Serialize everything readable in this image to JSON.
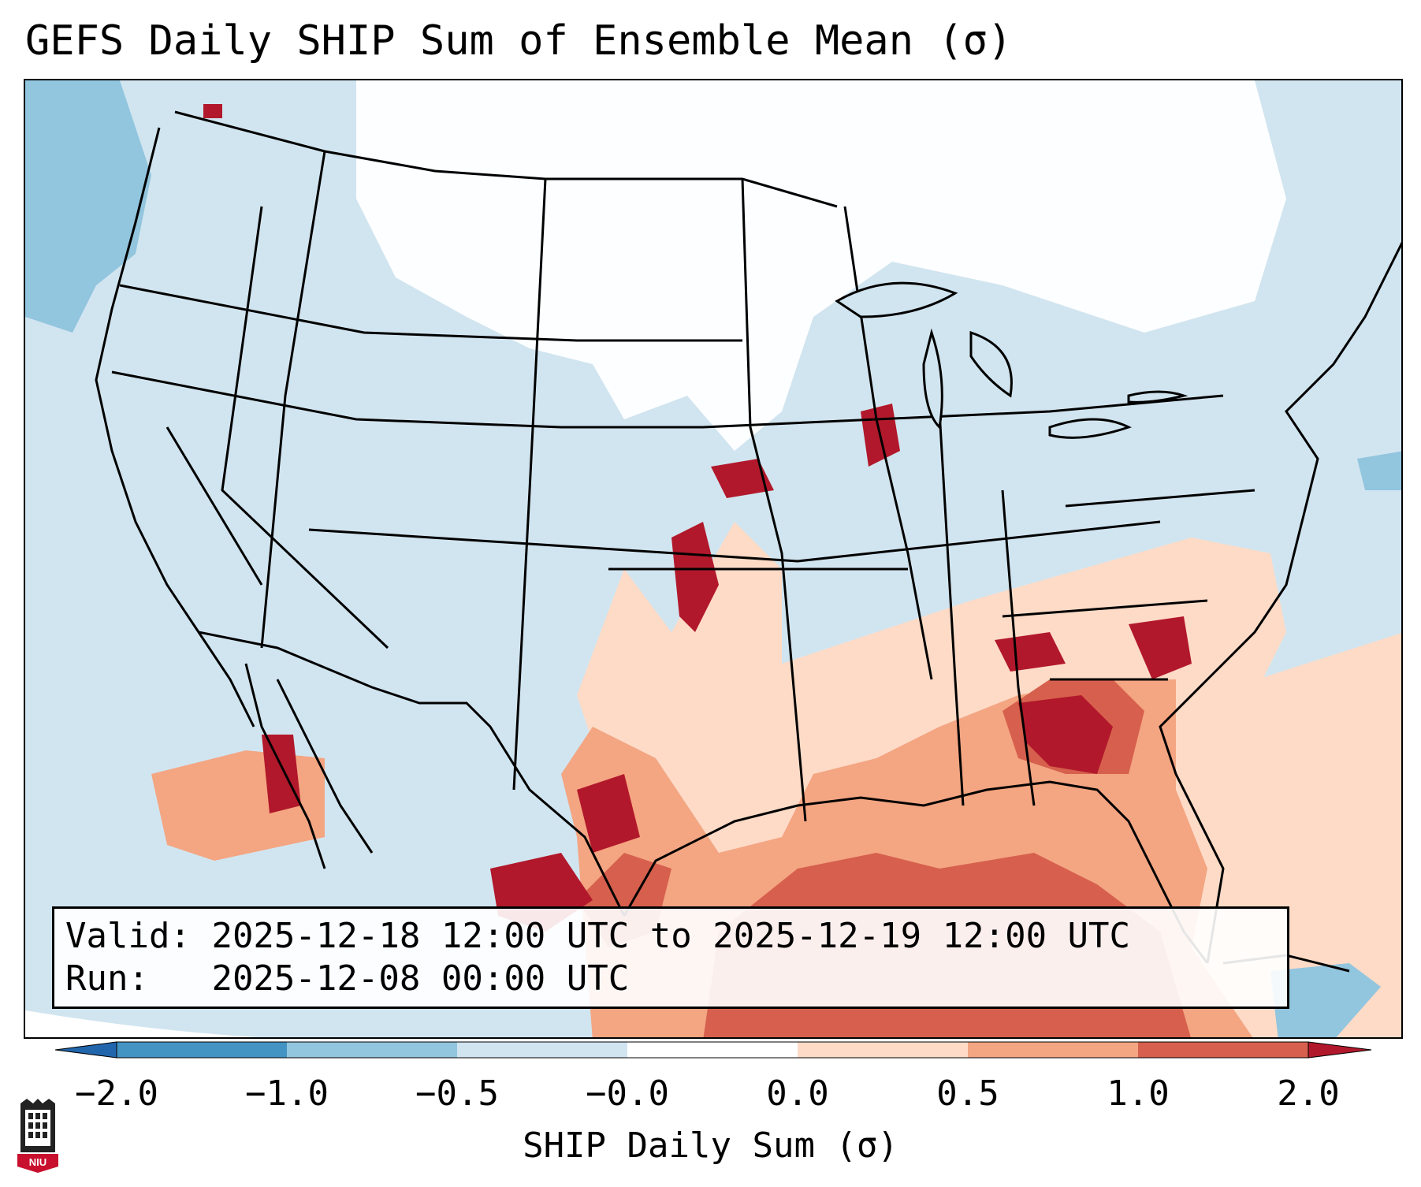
{
  "title": "GEFS Daily SHIP Sum of Ensemble Mean (σ)",
  "info": {
    "valid_label": "Valid:",
    "valid_value": "2025-12-18 12:00 UTC to 2025-12-19 12:00 UTC",
    "run_label": "Run:",
    "run_value": "2025-12-08 00:00 UTC"
  },
  "colorbar": {
    "title": "SHIP Daily Sum (σ)",
    "ticks": [
      "−2.0",
      "−1.0",
      "−0.5",
      "−0.0",
      "0.0",
      "0.5",
      "1.0",
      "2.0"
    ],
    "colors": [
      "#4393c3",
      "#92c5de",
      "#d1e5f0",
      "#ffffff",
      "#fddbc7",
      "#f4a582",
      "#d6604d",
      "#b2182b"
    ],
    "extend": "both"
  },
  "logo": {
    "text": "NIU",
    "icon": "university-logo-icon"
  },
  "map": {
    "projection": "Lambert conformal, CONUS",
    "background_color": "#d1e5f0",
    "features": [
      "state borders",
      "coastlines",
      "Great Lakes",
      "Mexico",
      "Gulf of Mexico",
      "Caribbean"
    ]
  }
}
